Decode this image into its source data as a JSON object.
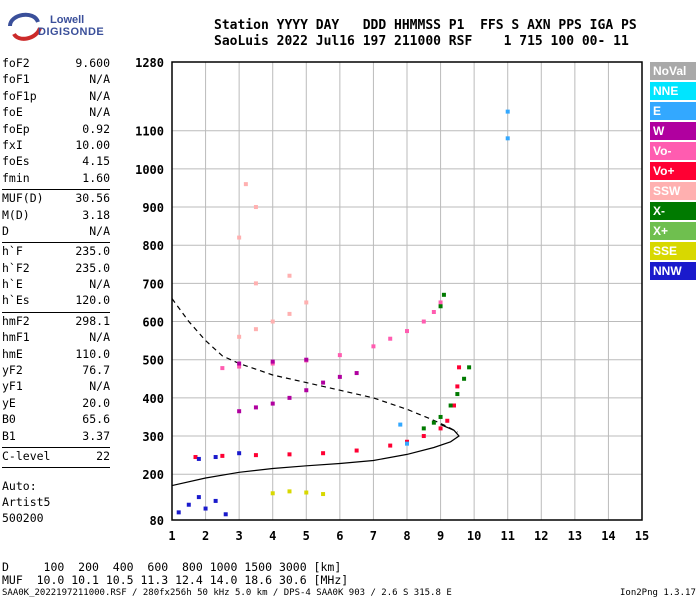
{
  "logo": {
    "line1": "Lowell",
    "line2": "DIGISONDE"
  },
  "header": {
    "line1": "Station YYYY DAY   DDD HHMMSS P1  FFS S AXN PPS IGA PS",
    "line2": "SaoLuis 2022 Jul16 197 211000 RSF    1 715 100 00- 11"
  },
  "params_group1": [
    {
      "k": "foF2",
      "v": "9.600"
    },
    {
      "k": "foF1",
      "v": "N/A"
    },
    {
      "k": "foF1p",
      "v": "N/A"
    },
    {
      "k": "foE",
      "v": "N/A"
    },
    {
      "k": "foEp",
      "v": "0.92"
    },
    {
      "k": "fxI",
      "v": "10.00"
    },
    {
      "k": "foEs",
      "v": "4.15"
    },
    {
      "k": "fmin",
      "v": "1.60"
    }
  ],
  "params_group2": [
    {
      "k": "MUF(D)",
      "v": "30.56"
    },
    {
      "k": "M(D)",
      "v": "3.18"
    },
    {
      "k": "D",
      "v": "N/A"
    }
  ],
  "params_group3": [
    {
      "k": "h`F",
      "v": "235.0"
    },
    {
      "k": "h`F2",
      "v": "235.0"
    },
    {
      "k": "h`E",
      "v": "N/A"
    },
    {
      "k": "h`Es",
      "v": "120.0"
    }
  ],
  "params_group4": [
    {
      "k": "hmF2",
      "v": "298.1"
    },
    {
      "k": "hmF1",
      "v": "N/A"
    },
    {
      "k": "hmE",
      "v": "110.0"
    },
    {
      "k": "yF2",
      "v": "76.7"
    },
    {
      "k": "yF1",
      "v": "N/A"
    },
    {
      "k": "yE",
      "v": "20.0"
    },
    {
      "k": "B0",
      "v": "65.6"
    },
    {
      "k": "B1",
      "v": "3.37"
    }
  ],
  "params_group5": [
    {
      "k": "C-level",
      "v": "22"
    }
  ],
  "auto": {
    "line1": "Auto:",
    "line2": "Artist5",
    "line3": "500200"
  },
  "legend": [
    {
      "label": "NoVal",
      "color": "#a9a9a9"
    },
    {
      "label": "NNE",
      "color": "#00e5ff"
    },
    {
      "label": "E",
      "color": "#33a8ff"
    },
    {
      "label": "W",
      "color": "#b0009f"
    },
    {
      "label": "Vo-",
      "color": "#ff5cb0"
    },
    {
      "label": "Vo+",
      "color": "#ff0033"
    },
    {
      "label": "SSW",
      "color": "#ffb0b0"
    },
    {
      "label": "X-",
      "color": "#007a00"
    },
    {
      "label": "X+",
      "color": "#6fbf4f"
    },
    {
      "label": "SSE",
      "color": "#d8d800"
    },
    {
      "label": "NNW",
      "color": "#1a1acc"
    }
  ],
  "muf_table": {
    "line1": "D     100  200  400  600  800 1000 1500 3000 [km]",
    "line2": "MUF  10.0 10.1 10.5 11.3 12.4 14.0 18.6 30.6 [MHz]"
  },
  "footer": {
    "left": "SAA0K_2022197211000.RSF / 280fx256h 50 kHz 5.0 km / DPS-4 SAA0K 903 / 2.6 S 315.8 E",
    "right": "Ion2Png 1.3.17"
  },
  "chart_data": {
    "type": "scatter",
    "xlim": [
      1,
      15
    ],
    "ylim": [
      80,
      1280
    ],
    "x_ticks": [
      1,
      2,
      3,
      4,
      5,
      6,
      7,
      8,
      9,
      10,
      11,
      12,
      13,
      14,
      15
    ],
    "y_ticks": [
      80,
      200,
      300,
      400,
      500,
      600,
      700,
      800,
      900,
      1000,
      1100,
      1280
    ],
    "grid": true,
    "legend_position": "right",
    "series": [
      {
        "name": "Vo+",
        "color": "#ff0033",
        "points": [
          [
            1.7,
            245
          ],
          [
            2.5,
            248
          ],
          [
            3.5,
            250
          ],
          [
            4.5,
            252
          ],
          [
            5.5,
            255
          ],
          [
            6.5,
            262
          ],
          [
            7.5,
            275
          ],
          [
            8,
            285
          ],
          [
            8.5,
            300
          ],
          [
            9,
            320
          ],
          [
            9.2,
            340
          ],
          [
            9.4,
            380
          ],
          [
            9.5,
            430
          ],
          [
            9.55,
            480
          ]
        ]
      },
      {
        "name": "Vo-",
        "color": "#ff5cb0",
        "points": [
          [
            2.5,
            478
          ],
          [
            3,
            482
          ],
          [
            4,
            490
          ],
          [
            5,
            498
          ],
          [
            6,
            512
          ],
          [
            7,
            535
          ],
          [
            7.5,
            555
          ],
          [
            8,
            575
          ],
          [
            8.5,
            600
          ],
          [
            8.8,
            625
          ],
          [
            9,
            650
          ]
        ]
      },
      {
        "name": "X-",
        "color": "#007a00",
        "points": [
          [
            8.5,
            320
          ],
          [
            8.8,
            335
          ],
          [
            9,
            350
          ],
          [
            9.3,
            380
          ],
          [
            9.5,
            410
          ],
          [
            9.7,
            450
          ],
          [
            9.85,
            480
          ],
          [
            9,
            640
          ],
          [
            9.1,
            670
          ]
        ]
      },
      {
        "name": "W",
        "color": "#b0009f",
        "points": [
          [
            3,
            365
          ],
          [
            3.5,
            375
          ],
          [
            4,
            385
          ],
          [
            4.5,
            400
          ],
          [
            5,
            420
          ],
          [
            5.5,
            440
          ],
          [
            6,
            455
          ],
          [
            6.5,
            465
          ],
          [
            3,
            490
          ],
          [
            4,
            495
          ],
          [
            5,
            500
          ]
        ]
      },
      {
        "name": "NNW",
        "color": "#1a1acc",
        "points": [
          [
            1.2,
            100
          ],
          [
            1.5,
            120
          ],
          [
            1.8,
            140
          ],
          [
            2,
            110
          ],
          [
            2.3,
            130
          ],
          [
            2.6,
            95
          ],
          [
            1.8,
            240
          ],
          [
            2.3,
            245
          ],
          [
            3,
            255
          ]
        ]
      },
      {
        "name": "SSE",
        "color": "#d8d800",
        "points": [
          [
            4,
            150
          ],
          [
            4.5,
            155
          ],
          [
            5,
            152
          ],
          [
            5.5,
            148
          ]
        ]
      },
      {
        "name": "SSW",
        "color": "#ffb0b0",
        "points": [
          [
            3,
            560
          ],
          [
            3.5,
            580
          ],
          [
            4,
            600
          ],
          [
            4.5,
            620
          ],
          [
            5,
            650
          ],
          [
            3.5,
            700
          ],
          [
            4.5,
            720
          ],
          [
            3,
            820
          ],
          [
            3.5,
            900
          ],
          [
            3.2,
            960
          ]
        ]
      },
      {
        "name": "E",
        "color": "#33a8ff",
        "points": [
          [
            11,
            1150
          ],
          [
            11,
            1080
          ],
          [
            8,
            280
          ],
          [
            7.8,
            330
          ]
        ]
      }
    ],
    "lines": [
      {
        "style": "solid",
        "color": "#000000",
        "points": [
          [
            1,
            170
          ],
          [
            2,
            190
          ],
          [
            3,
            205
          ],
          [
            4,
            215
          ],
          [
            5,
            222
          ],
          [
            6,
            228
          ],
          [
            7,
            236
          ],
          [
            8,
            252
          ],
          [
            8.8,
            270
          ],
          [
            9.3,
            285
          ],
          [
            9.55,
            300
          ],
          [
            9.4,
            315
          ],
          [
            9,
            330
          ]
        ]
      },
      {
        "style": "dashed",
        "color": "#000000",
        "points": [
          [
            1,
            660
          ],
          [
            1.5,
            600
          ],
          [
            2,
            550
          ],
          [
            2.5,
            510
          ],
          [
            3,
            490
          ],
          [
            3.5,
            475
          ],
          [
            4,
            460
          ],
          [
            5,
            440
          ],
          [
            6,
            420
          ],
          [
            7,
            400
          ],
          [
            8,
            370
          ],
          [
            8.7,
            345
          ],
          [
            9.2,
            325
          ],
          [
            9.5,
            310
          ]
        ]
      }
    ]
  }
}
